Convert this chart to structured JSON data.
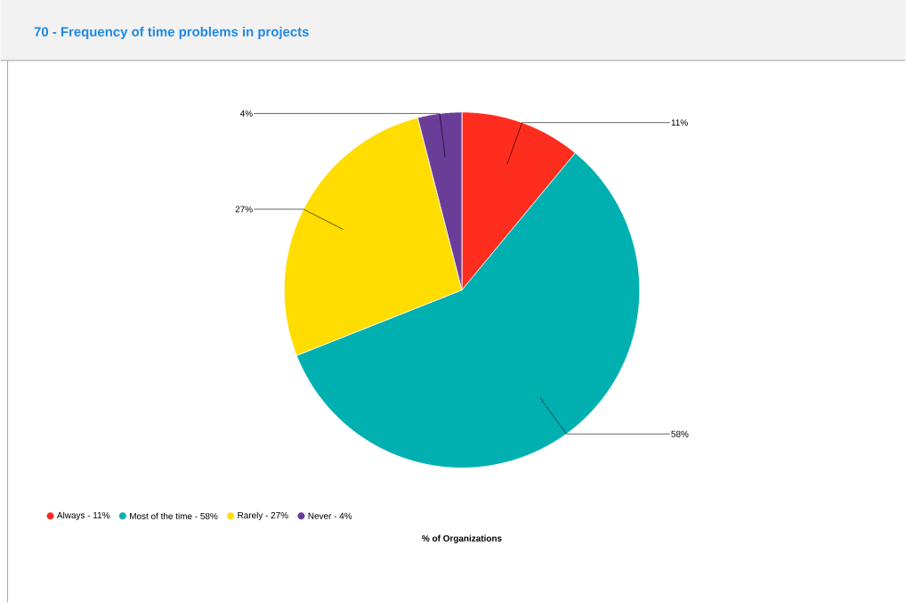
{
  "chart_data": {
    "type": "pie",
    "title": "70 - Frequency of time problems in projects",
    "xlabel": "% of Organizations",
    "categories": [
      "Always  - 11%",
      "Most of the time  - 58%",
      "Rarely  - 27%",
      "Never  - 4%"
    ],
    "values": [
      11,
      58,
      27,
      4
    ],
    "value_labels": [
      "11%",
      "58%",
      "27%",
      "4%"
    ],
    "colors": [
      "#ff2d1e",
      "#00b0b0",
      "#ffdd00",
      "#6a3d99"
    ],
    "legend": "bottom"
  }
}
